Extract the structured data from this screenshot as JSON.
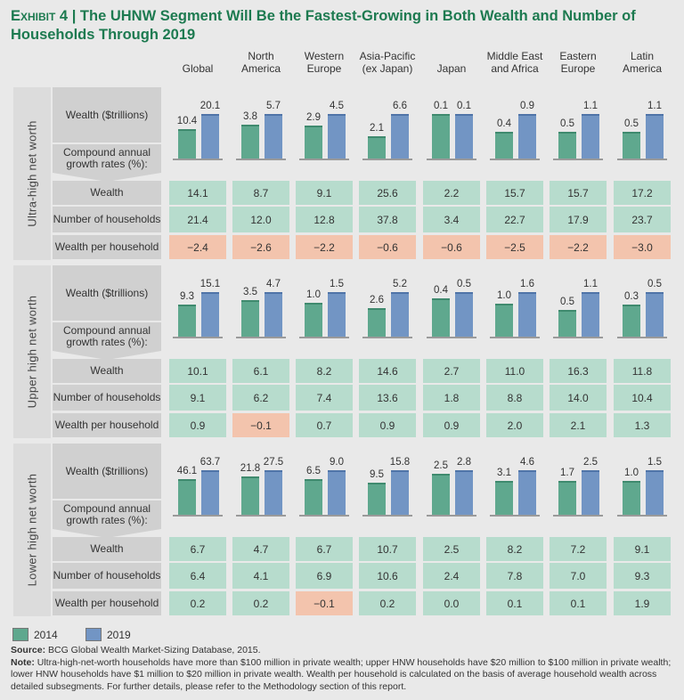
{
  "title": {
    "exhibit": "Exhibit 4",
    "separator": "|",
    "text": "The UHNW Segment Will Be the Fastest-Growing in Both Wealth and Number of Households Through 2019"
  },
  "chart_data": {
    "type": "bar",
    "categories": [
      "Global",
      "North America",
      "Western Europe",
      "Asia-Pacific (ex Japan)",
      "Japan",
      "Middle East and Africa",
      "Eastern Europe",
      "Latin America"
    ],
    "row_labels": {
      "wealth_chart": "Wealth ($trillions)",
      "cagr_header": "Compound annual growth rates (%):",
      "wealth": "Wealth",
      "households": "Number of households",
      "per_household": "Wealth per household"
    },
    "legend": [
      {
        "name": "2014",
        "color": "#5fa88e"
      },
      {
        "name": "2019",
        "color": "#7295c4"
      }
    ],
    "legend_placement": "bottom-left",
    "colors": {
      "positive_cell": "#b7dccd",
      "negative_cell": "#f3c4ad"
    },
    "panels": [
      {
        "segment": "Ultra-high net worth",
        "series": [
          {
            "name": "2014",
            "values": [
              10.4,
              3.8,
              2.9,
              2.1,
              0.1,
              0.4,
              0.5,
              0.5
            ]
          },
          {
            "name": "2019",
            "values": [
              20.1,
              5.7,
              4.5,
              6.6,
              0.1,
              0.9,
              1.1,
              1.1
            ]
          }
        ],
        "cagr": {
          "wealth": [
            14.1,
            8.7,
            9.1,
            25.6,
            2.2,
            15.7,
            15.7,
            17.2
          ],
          "households": [
            21.4,
            12.0,
            12.8,
            37.8,
            3.4,
            22.7,
            17.9,
            23.7
          ],
          "per_household": [
            -2.4,
            -2.6,
            -2.2,
            -0.6,
            -0.6,
            -2.5,
            -2.2,
            -3.0
          ]
        }
      },
      {
        "segment": "Upper high net worth",
        "series": [
          {
            "name": "2014",
            "values": [
              9.3,
              3.5,
              1.0,
              2.6,
              0.4,
              1.0,
              0.5,
              0.3
            ]
          },
          {
            "name": "2019",
            "values": [
              15.1,
              4.7,
              1.5,
              5.2,
              0.5,
              1.6,
              1.1,
              0.5
            ]
          }
        ],
        "cagr": {
          "wealth": [
            10.1,
            6.1,
            8.2,
            14.6,
            2.7,
            11.0,
            16.3,
            11.8
          ],
          "households": [
            9.1,
            6.2,
            7.4,
            13.6,
            1.8,
            8.8,
            14.0,
            10.4
          ],
          "per_household": [
            0.9,
            -0.1,
            0.7,
            0.9,
            0.9,
            2.0,
            2.1,
            1.3
          ]
        }
      },
      {
        "segment": "Lower high net worth",
        "series": [
          {
            "name": "2014",
            "values": [
              46.1,
              21.8,
              6.5,
              9.5,
              2.5,
              3.1,
              1.7,
              1.0
            ]
          },
          {
            "name": "2019",
            "values": [
              63.7,
              27.5,
              9.0,
              15.8,
              2.8,
              4.6,
              2.5,
              1.5
            ]
          }
        ],
        "cagr": {
          "wealth": [
            6.7,
            4.7,
            6.7,
            10.7,
            2.5,
            8.2,
            7.2,
            9.1
          ],
          "households": [
            6.4,
            4.1,
            6.9,
            10.6,
            2.4,
            7.8,
            7.0,
            9.3
          ],
          "per_household": [
            0.2,
            0.2,
            -0.1,
            0.2,
            0.0,
            0.1,
            0.1,
            1.9
          ]
        }
      }
    ]
  },
  "footer": {
    "source_label": "Source:",
    "source": "BCG Global Wealth Market-Sizing Database, 2015.",
    "note_label": "Note:",
    "note": "Ultra-high-net-worth households have more than $100 million in private wealth; upper HNW households have $20 million to $100 million in private wealth; lower HNW households have $1 million to $20 million in private wealth. Wealth per household is calculated on the basis of average household wealth across detailed subsegments. For further details, please refer to the Methodology section of this report."
  }
}
